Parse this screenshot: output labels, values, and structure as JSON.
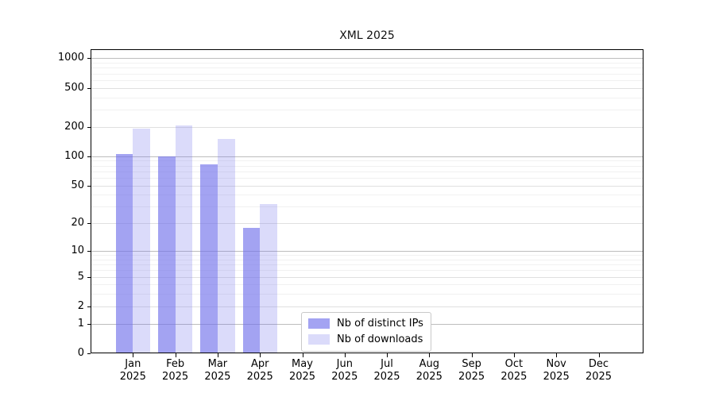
{
  "chart_data": {
    "type": "bar",
    "title": "XML 2025",
    "categories": [
      {
        "month": "Jan",
        "year": "2025"
      },
      {
        "month": "Feb",
        "year": "2025"
      },
      {
        "month": "Mar",
        "year": "2025"
      },
      {
        "month": "Apr",
        "year": "2025"
      },
      {
        "month": "May",
        "year": "2025"
      },
      {
        "month": "Jun",
        "year": "2025"
      },
      {
        "month": "Jul",
        "year": "2025"
      },
      {
        "month": "Aug",
        "year": "2025"
      },
      {
        "month": "Sep",
        "year": "2025"
      },
      {
        "month": "Oct",
        "year": "2025"
      },
      {
        "month": "Nov",
        "year": "2025"
      },
      {
        "month": "Dec",
        "year": "2025"
      }
    ],
    "series": [
      {
        "name": "Nb of distinct IPs",
        "fill": "rgba(110,110,235,0.63)",
        "blended_hex": "#a5a5f2",
        "values": [
          105,
          100,
          82,
          18,
          null,
          null,
          null,
          null,
          null,
          null,
          null,
          null
        ]
      },
      {
        "name": "Nb of downloads",
        "fill": "rgba(110,110,235,0.25)",
        "blended_hex": "#dbdbf8",
        "values": [
          192,
          205,
          150,
          32,
          null,
          null,
          null,
          null,
          null,
          null,
          null,
          null
        ]
      }
    ],
    "y_axis": {
      "scale": "log1p",
      "ticks": [
        0,
        1,
        2,
        5,
        10,
        20,
        50,
        100,
        200,
        500,
        1000
      ],
      "view_max": 1236
    },
    "x_axis": {
      "tick_count": 12
    },
    "legend": {
      "position": "inside-bottom-left-of-center"
    },
    "grid": {
      "major_power_color": "#bdbdbd",
      "major_color": "#e0e0e0",
      "minor_color": "#f1f1f1"
    }
  }
}
